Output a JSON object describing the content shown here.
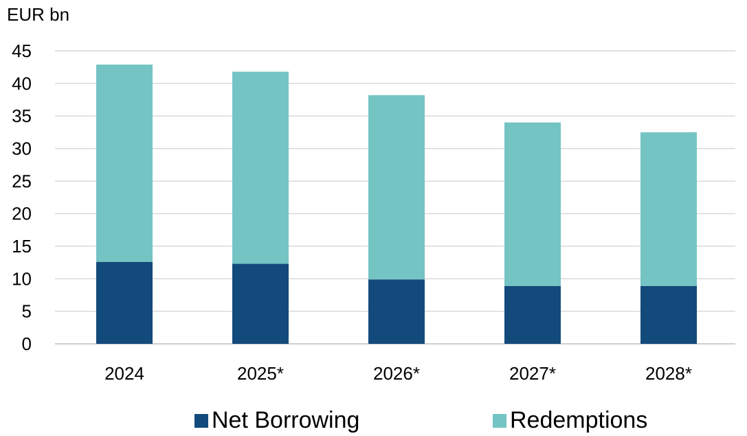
{
  "chart_data": {
    "type": "bar",
    "stacked": true,
    "unit_label": "EUR bn",
    "categories": [
      "2024",
      "2025*",
      "2026*",
      "2027*",
      "2028*"
    ],
    "series": [
      {
        "name": "Net Borrowing",
        "color": "#134a7c",
        "values": [
          12.6,
          12.3,
          9.9,
          8.9,
          8.9
        ]
      },
      {
        "name": "Redemptions",
        "color": "#74c4c4",
        "values": [
          30.3,
          29.5,
          28.3,
          25.1,
          23.6
        ]
      }
    ],
    "ylim": [
      0,
      45
    ],
    "yticks": [
      "0",
      "5",
      "10",
      "15",
      "20",
      "25",
      "30",
      "35",
      "40",
      "45"
    ],
    "grid": true,
    "legend_position": "bottom"
  }
}
